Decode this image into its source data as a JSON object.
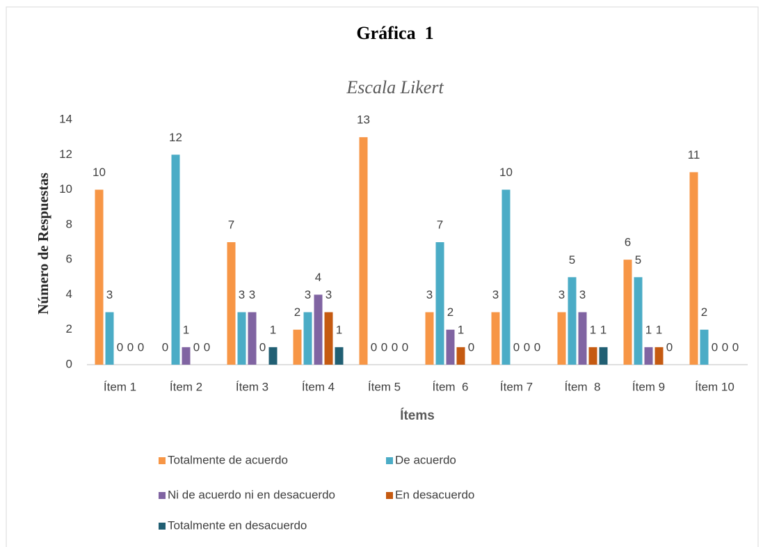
{
  "chart_data": {
    "type": "bar",
    "title": "Gráfica  1",
    "subtitle": "Escala Likert",
    "y_label": "Número de Respuestas",
    "x_label": "Ítems",
    "categories": [
      "Ítem 1",
      "Ítem 2",
      "Ítem 3",
      "Ítem 4",
      "Ítem 5",
      "Ítem  6",
      "Ítem 7",
      "Ítem  8",
      "Ítem 9",
      "Ítem 10"
    ],
    "series": [
      {
        "name": "Totalmente de acuerdo",
        "color": "#f79646",
        "values": [
          10,
          0,
          7,
          2,
          13,
          3,
          3,
          3,
          6,
          11
        ]
      },
      {
        "name": "De acuerdo",
        "color": "#4bacc6",
        "values": [
          3,
          12,
          3,
          3,
          0,
          7,
          10,
          5,
          5,
          2
        ]
      },
      {
        "name": "Ni de acuerdo ni en desacuerdo",
        "color": "#8064a2",
        "values": [
          0,
          1,
          3,
          4,
          0,
          2,
          0,
          3,
          1,
          0
        ]
      },
      {
        "name": "En desacuerdo",
        "color": "#c55a11",
        "values": [
          0,
          0,
          0,
          3,
          0,
          1,
          0,
          1,
          1,
          0
        ]
      },
      {
        "name": "Totalmente en desacuerdo",
        "color": "#215f73",
        "values": [
          0,
          0,
          1,
          1,
          0,
          0,
          0,
          1,
          0,
          0
        ]
      }
    ],
    "ylim": [
      0,
      14
    ],
    "yticks": [
      0,
      2,
      4,
      6,
      8,
      10,
      12,
      14
    ],
    "grid": false,
    "legend": "bottom"
  }
}
